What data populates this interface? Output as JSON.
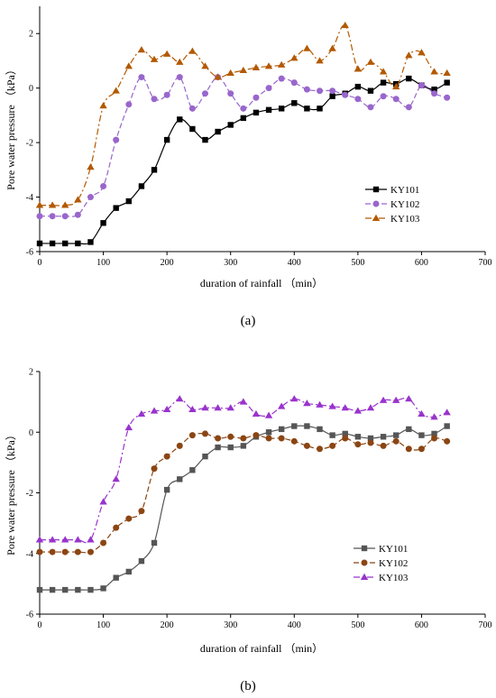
{
  "figure": {
    "panels": [
      "(a)",
      "(b)"
    ]
  },
  "chart_data": [
    {
      "type": "line",
      "panel_label": "(a)",
      "xlabel": "duration of rainfall （min）",
      "ylabel": "Pore water pressure （kPa）",
      "xlim": [
        0,
        700
      ],
      "ylim": [
        -6,
        3
      ],
      "xticks": [
        0,
        100,
        200,
        300,
        400,
        500,
        600,
        700
      ],
      "yticks": [
        -6,
        -4,
        -2,
        0,
        2
      ],
      "legend_position": "lower-right",
      "series": [
        {
          "name": "KY101",
          "color": "#000000",
          "marker": "square",
          "dash": "",
          "x": [
            0,
            20,
            40,
            60,
            80,
            100,
            120,
            140,
            160,
            180,
            200,
            220,
            240,
            260,
            280,
            300,
            320,
            340,
            360,
            380,
            400,
            420,
            440,
            460,
            480,
            500,
            520,
            540,
            560,
            580,
            600,
            620,
            640
          ],
          "y": [
            -5.7,
            -5.7,
            -5.7,
            -5.7,
            -5.65,
            -4.95,
            -4.4,
            -4.15,
            -3.6,
            -3.0,
            -1.9,
            -1.15,
            -1.5,
            -1.9,
            -1.6,
            -1.35,
            -1.1,
            -0.9,
            -0.8,
            -0.75,
            -0.55,
            -0.75,
            -0.75,
            -0.3,
            -0.2,
            0.05,
            -0.1,
            0.2,
            0.15,
            0.35,
            0.1,
            -0.05,
            0.2
          ]
        },
        {
          "name": "KY102",
          "color": "#9966cc",
          "marker": "circle",
          "dash": "6,3",
          "x": [
            0,
            20,
            40,
            60,
            80,
            100,
            120,
            140,
            160,
            180,
            200,
            220,
            240,
            260,
            280,
            300,
            320,
            340,
            360,
            380,
            400,
            420,
            440,
            460,
            480,
            500,
            520,
            540,
            560,
            580,
            600,
            620,
            640
          ],
          "y": [
            -4.7,
            -4.7,
            -4.7,
            -4.65,
            -4.0,
            -3.6,
            -1.9,
            -0.6,
            0.4,
            -0.4,
            -0.25,
            0.4,
            -0.75,
            -0.2,
            0.4,
            -0.2,
            -0.75,
            -0.35,
            0.0,
            0.35,
            0.2,
            -0.05,
            -0.1,
            -0.1,
            -0.25,
            -0.4,
            -0.7,
            -0.3,
            -0.4,
            -0.7,
            0.1,
            -0.2,
            -0.35
          ]
        },
        {
          "name": "KY103",
          "color": "#b35900",
          "marker": "triangle",
          "dash": "7,3,2,3",
          "x": [
            0,
            20,
            40,
            60,
            80,
            100,
            120,
            140,
            160,
            180,
            200,
            220,
            240,
            260,
            280,
            300,
            320,
            340,
            360,
            380,
            400,
            420,
            440,
            460,
            480,
            500,
            520,
            540,
            560,
            580,
            600,
            620,
            640
          ],
          "y": [
            -4.3,
            -4.3,
            -4.3,
            -4.1,
            -2.9,
            -0.65,
            -0.1,
            0.8,
            1.4,
            1.05,
            1.25,
            0.95,
            1.35,
            0.8,
            0.4,
            0.55,
            0.65,
            0.75,
            0.8,
            0.85,
            1.1,
            1.45,
            1.0,
            1.45,
            2.3,
            0.7,
            0.95,
            0.6,
            0.05,
            1.2,
            1.3,
            0.6,
            0.55
          ]
        }
      ]
    },
    {
      "type": "line",
      "panel_label": "(b)",
      "xlabel": "duration of rainfall （min）",
      "ylabel": "Pore water pressure （kPa）",
      "xlim": [
        0,
        700
      ],
      "ylim": [
        -6,
        2
      ],
      "xticks": [
        0,
        100,
        200,
        300,
        400,
        500,
        600,
        700
      ],
      "yticks": [
        -6,
        -4,
        -2,
        0,
        2
      ],
      "legend_position": "lower-right",
      "series": [
        {
          "name": "KY101",
          "color": "#555555",
          "marker": "square",
          "dash": "",
          "x": [
            0,
            20,
            40,
            60,
            80,
            100,
            120,
            140,
            160,
            180,
            200,
            220,
            240,
            260,
            280,
            300,
            320,
            340,
            360,
            380,
            400,
            420,
            440,
            460,
            480,
            500,
            520,
            540,
            560,
            580,
            600,
            620,
            640
          ],
          "y": [
            -5.2,
            -5.2,
            -5.2,
            -5.2,
            -5.2,
            -5.15,
            -4.8,
            -4.6,
            -4.25,
            -3.65,
            -1.9,
            -1.55,
            -1.25,
            -0.8,
            -0.5,
            -0.5,
            -0.45,
            -0.15,
            0.0,
            0.1,
            0.2,
            0.2,
            0.1,
            -0.1,
            -0.05,
            -0.15,
            -0.2,
            -0.15,
            -0.1,
            0.1,
            -0.1,
            -0.05,
            0.2
          ]
        },
        {
          "name": "KY102",
          "color": "#8b4513",
          "marker": "circle",
          "dash": "6,3",
          "x": [
            0,
            20,
            40,
            60,
            80,
            100,
            120,
            140,
            160,
            180,
            200,
            220,
            240,
            260,
            280,
            300,
            320,
            340,
            360,
            380,
            400,
            420,
            440,
            460,
            480,
            500,
            520,
            540,
            560,
            580,
            600,
            620,
            640
          ],
          "y": [
            -3.95,
            -3.95,
            -3.95,
            -3.95,
            -3.95,
            -3.65,
            -3.15,
            -2.85,
            -2.6,
            -1.2,
            -0.8,
            -0.45,
            -0.1,
            -0.05,
            -0.2,
            -0.15,
            -0.2,
            -0.1,
            -0.2,
            -0.2,
            -0.3,
            -0.45,
            -0.55,
            -0.45,
            -0.2,
            -0.4,
            -0.35,
            -0.45,
            -0.3,
            -0.55,
            -0.55,
            -0.2,
            -0.3
          ]
        },
        {
          "name": "KY103",
          "color": "#9933cc",
          "marker": "triangle",
          "dash": "7,3,2,3",
          "x": [
            0,
            20,
            40,
            60,
            80,
            100,
            120,
            140,
            160,
            180,
            200,
            220,
            240,
            260,
            280,
            300,
            320,
            340,
            360,
            380,
            400,
            420,
            440,
            460,
            480,
            500,
            520,
            540,
            560,
            580,
            600,
            620,
            640
          ],
          "y": [
            -3.55,
            -3.55,
            -3.55,
            -3.55,
            -3.55,
            -2.3,
            -1.55,
            0.15,
            0.6,
            0.7,
            0.75,
            1.1,
            0.75,
            0.8,
            0.8,
            0.8,
            1.0,
            0.6,
            0.55,
            0.85,
            1.1,
            0.95,
            0.9,
            0.85,
            0.8,
            0.7,
            0.8,
            1.05,
            1.05,
            1.1,
            0.6,
            0.5,
            0.65
          ]
        }
      ]
    }
  ]
}
